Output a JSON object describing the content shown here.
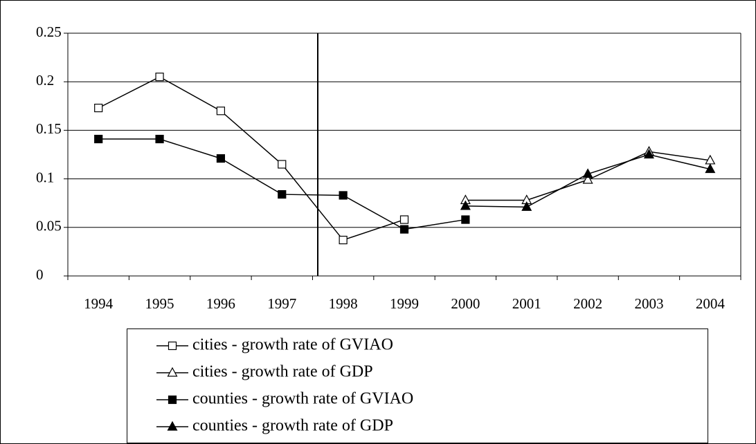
{
  "chart_data": {
    "type": "line",
    "categories": [
      "1994",
      "1995",
      "1996",
      "1997",
      "1998",
      "1999",
      "2000",
      "2001",
      "2002",
      "2003",
      "2004"
    ],
    "series": [
      {
        "name": "cities - growth rate of GVIAO",
        "color": "#000000",
        "marker": "square",
        "filled": false,
        "values": [
          0.173,
          0.205,
          0.17,
          0.115,
          0.037,
          0.058,
          null,
          null,
          null,
          null,
          null
        ]
      },
      {
        "name": "cities - growth rate of GDP",
        "color": "#000000",
        "marker": "triangle",
        "filled": false,
        "values": [
          null,
          null,
          null,
          null,
          null,
          null,
          0.078,
          0.078,
          0.099,
          0.128,
          0.119
        ]
      },
      {
        "name": "counties - growth rate of GVIAO",
        "color": "#000000",
        "marker": "square",
        "filled": true,
        "values": [
          0.141,
          0.141,
          0.121,
          0.084,
          0.083,
          0.048,
          0.058,
          null,
          null,
          null,
          null
        ]
      },
      {
        "name": "counties - growth rate of GDP",
        "color": "#000000",
        "marker": "triangle",
        "filled": true,
        "values": [
          null,
          null,
          null,
          null,
          null,
          null,
          0.072,
          0.071,
          0.105,
          0.125,
          0.11
        ]
      }
    ],
    "ylim": [
      0,
      0.25
    ],
    "yticks": [
      0,
      0.05,
      0.1,
      0.15,
      0.2,
      0.25
    ],
    "grid": true
  }
}
